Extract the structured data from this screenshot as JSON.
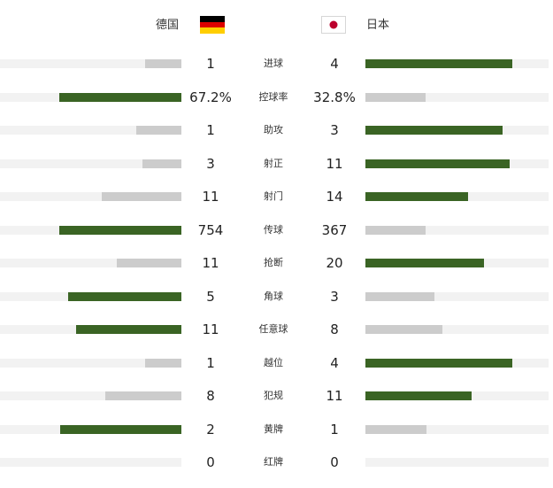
{
  "teams": {
    "home": {
      "name": "德国",
      "flag_colors": [
        "#000000",
        "#dd0000",
        "#ffce00"
      ]
    },
    "away": {
      "name": "日本",
      "flag_colors": [
        "#ffffff",
        "#bc002d"
      ]
    }
  },
  "colors": {
    "leading": "#3a6424",
    "trailing": "#cccccc",
    "track": "#f2f2f2"
  },
  "stats": [
    {
      "label": "进球",
      "home": "1",
      "away": "4",
      "home_share": 0.2,
      "away_share": 0.8
    },
    {
      "label": "控球率",
      "home": "67.2%",
      "away": "32.8%",
      "home_share": 0.672,
      "away_share": 0.328
    },
    {
      "label": "助攻",
      "home": "1",
      "away": "3",
      "home_share": 0.25,
      "away_share": 0.75
    },
    {
      "label": "射正",
      "home": "3",
      "away": "11",
      "home_share": 0.214,
      "away_share": 0.786
    },
    {
      "label": "射门",
      "home": "11",
      "away": "14",
      "home_share": 0.44,
      "away_share": 0.56
    },
    {
      "label": "传球",
      "home": "754",
      "away": "367",
      "home_share": 0.673,
      "away_share": 0.327
    },
    {
      "label": "抢断",
      "home": "11",
      "away": "20",
      "home_share": 0.355,
      "away_share": 0.645
    },
    {
      "label": "角球",
      "home": "5",
      "away": "3",
      "home_share": 0.625,
      "away_share": 0.375
    },
    {
      "label": "任意球",
      "home": "11",
      "away": "8",
      "home_share": 0.579,
      "away_share": 0.421
    },
    {
      "label": "越位",
      "home": "1",
      "away": "4",
      "home_share": 0.2,
      "away_share": 0.8
    },
    {
      "label": "犯规",
      "home": "8",
      "away": "11",
      "home_share": 0.421,
      "away_share": 0.579
    },
    {
      "label": "黄牌",
      "home": "2",
      "away": "1",
      "home_share": 0.667,
      "away_share": 0.333
    },
    {
      "label": "红牌",
      "home": "0",
      "away": "0",
      "home_share": 0,
      "away_share": 0
    }
  ]
}
